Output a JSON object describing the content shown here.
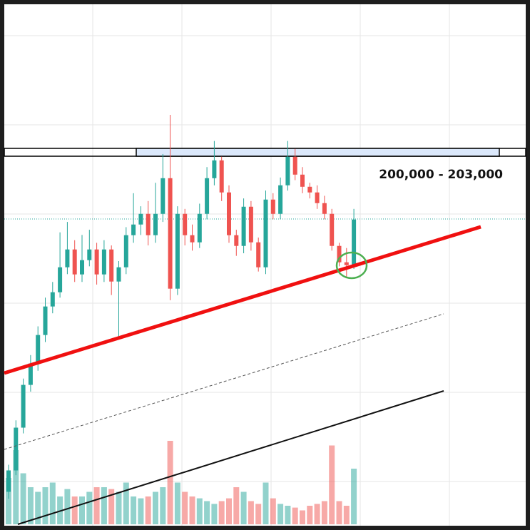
{
  "chart_data": {
    "type": "candlestick",
    "annotation": "200,000 - 203,000",
    "ylim": [
      57000,
      260000
    ],
    "volume_lim": [
      0,
      100
    ],
    "up_color": "#26a69a",
    "down_color": "#ef5350",
    "open": [
      71630,
      79820,
      96200,
      112580,
      120770,
      131690,
      142610,
      148070,
      157625,
      164450,
      154895,
      160355,
      164450,
      154895,
      164450,
      152165,
      157625,
      169910,
      174005,
      178100,
      169910,
      178100,
      191750,
      149435,
      178100,
      169910,
      167180,
      178100,
      191750,
      198575,
      186290,
      169910,
      165815,
      180830,
      167180,
      157625,
      183560,
      178100,
      189020,
      199940,
      193115,
      188474,
      186290,
      182195,
      178100,
      165815,
      159536,
      158444
    ],
    "high": [
      82000,
      99000,
      115000,
      124000,
      135000,
      146000,
      152000,
      171000,
      175000,
      168000,
      170000,
      172000,
      167000,
      168000,
      166000,
      160000,
      173000,
      186000,
      181000,
      183000,
      190000,
      201000,
      216000,
      181000,
      180000,
      174000,
      182000,
      196000,
      206000,
      200000,
      189000,
      172000,
      184000,
      183000,
      169000,
      187000,
      186000,
      192000,
      206000,
      203000,
      196000,
      190000,
      189000,
      185000,
      180000,
      167000,
      165000,
      180000
    ],
    "low": [
      69000,
      78000,
      94000,
      110000,
      118000,
      129000,
      140000,
      146000,
      155000,
      152000,
      152000,
      158000,
      151000,
      152000,
      147000,
      131000,
      155000,
      167000,
      170000,
      166000,
      167000,
      175000,
      145000,
      147000,
      166000,
      164000,
      165000,
      176000,
      189000,
      183000,
      167000,
      162000,
      163000,
      164000,
      156000,
      155000,
      176000,
      176000,
      187000,
      191000,
      186000,
      184000,
      180000,
      176000,
      164000,
      158000,
      154000,
      157000
    ],
    "close": [
      79820,
      96200,
      112580,
      120770,
      131690,
      142610,
      148070,
      157625,
      164450,
      154895,
      160355,
      164450,
      154895,
      164450,
      152165,
      157625,
      169910,
      174005,
      178100,
      169910,
      178100,
      191750,
      149435,
      178100,
      169910,
      167180,
      178100,
      191750,
      198575,
      186290,
      169910,
      165815,
      180830,
      167180,
      157625,
      183560,
      178100,
      189020,
      199940,
      193115,
      188474,
      186290,
      182195,
      178100,
      165815,
      159536,
      158444,
      175916
    ],
    "volume": [
      50,
      80,
      55,
      40,
      35,
      40,
      45,
      30,
      38,
      30,
      30,
      35,
      40,
      40,
      38,
      35,
      45,
      30,
      28,
      30,
      35,
      40,
      90,
      45,
      35,
      30,
      28,
      25,
      22,
      25,
      28,
      40,
      35,
      25,
      22,
      45,
      28,
      22,
      20,
      18,
      15,
      20,
      22,
      25,
      85,
      25,
      20,
      60
    ]
  }
}
